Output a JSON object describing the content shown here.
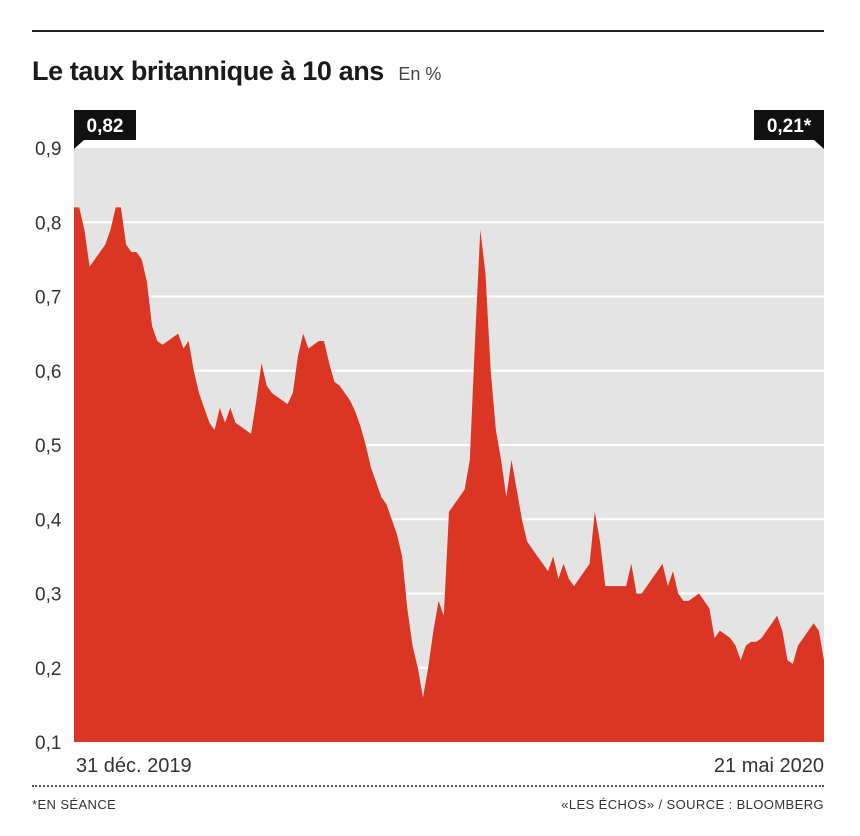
{
  "header": {
    "title": "Le taux britannique à 10 ans",
    "unit": "En %"
  },
  "footer": {
    "note": "*EN SÉANCE",
    "source": "«LES ÉCHOS» / SOURCE : BLOOMBERG"
  },
  "colors": {
    "area": "#db3523",
    "plot_background": "#e4e4e4",
    "gridline": "#ffffff",
    "badge": "#111111"
  },
  "chart_data": {
    "type": "area",
    "title": "Le taux britannique à 10 ans",
    "subtitle": "En %",
    "xlabel": "",
    "ylabel": "",
    "ylim": [
      0.1,
      0.9
    ],
    "yticks": [
      "0,9",
      "0,8",
      "0,7",
      "0,6",
      "0,5",
      "0,4",
      "0,3",
      "0,2",
      "0,1"
    ],
    "ytick_values": [
      0.9,
      0.8,
      0.7,
      0.6,
      0.5,
      0.4,
      0.3,
      0.2,
      0.1
    ],
    "x_start_label": "31 déc. 2019",
    "x_end_label": "21 mai 2020",
    "start_badge": "0,82",
    "end_badge": "0,21*",
    "grid": true,
    "series": [
      {
        "values": [
          0.82,
          0.82,
          0.79,
          0.74,
          0.75,
          0.76,
          0.77,
          0.79,
          0.82,
          0.82,
          0.77,
          0.76,
          0.76,
          0.75,
          0.72,
          0.66,
          0.64,
          0.635,
          0.64,
          0.645,
          0.65,
          0.63,
          0.64,
          0.6,
          0.57,
          0.55,
          0.53,
          0.52,
          0.55,
          0.53,
          0.55,
          0.53,
          0.525,
          0.52,
          0.515,
          0.56,
          0.61,
          0.58,
          0.57,
          0.565,
          0.56,
          0.555,
          0.57,
          0.62,
          0.65,
          0.63,
          0.635,
          0.64,
          0.64,
          0.61,
          0.585,
          0.58,
          0.57,
          0.56,
          0.545,
          0.525,
          0.5,
          0.47,
          0.45,
          0.43,
          0.42,
          0.4,
          0.38,
          0.35,
          0.28,
          0.23,
          0.2,
          0.16,
          0.2,
          0.25,
          0.29,
          0.27,
          0.41,
          0.42,
          0.43,
          0.44,
          0.48,
          0.64,
          0.79,
          0.73,
          0.6,
          0.52,
          0.48,
          0.43,
          0.48,
          0.44,
          0.4,
          0.37,
          0.36,
          0.35,
          0.34,
          0.33,
          0.35,
          0.32,
          0.34,
          0.32,
          0.31,
          0.32,
          0.33,
          0.34,
          0.41,
          0.37,
          0.31,
          0.31,
          0.31,
          0.31,
          0.31,
          0.34,
          0.3,
          0.3,
          0.31,
          0.32,
          0.33,
          0.34,
          0.31,
          0.33,
          0.3,
          0.29,
          0.29,
          0.295,
          0.3,
          0.29,
          0.28,
          0.24,
          0.25,
          0.245,
          0.24,
          0.23,
          0.21,
          0.23,
          0.235,
          0.235,
          0.24,
          0.25,
          0.26,
          0.27,
          0.25,
          0.21,
          0.205,
          0.23,
          0.24,
          0.25,
          0.26,
          0.25,
          0.21
        ]
      }
    ]
  }
}
